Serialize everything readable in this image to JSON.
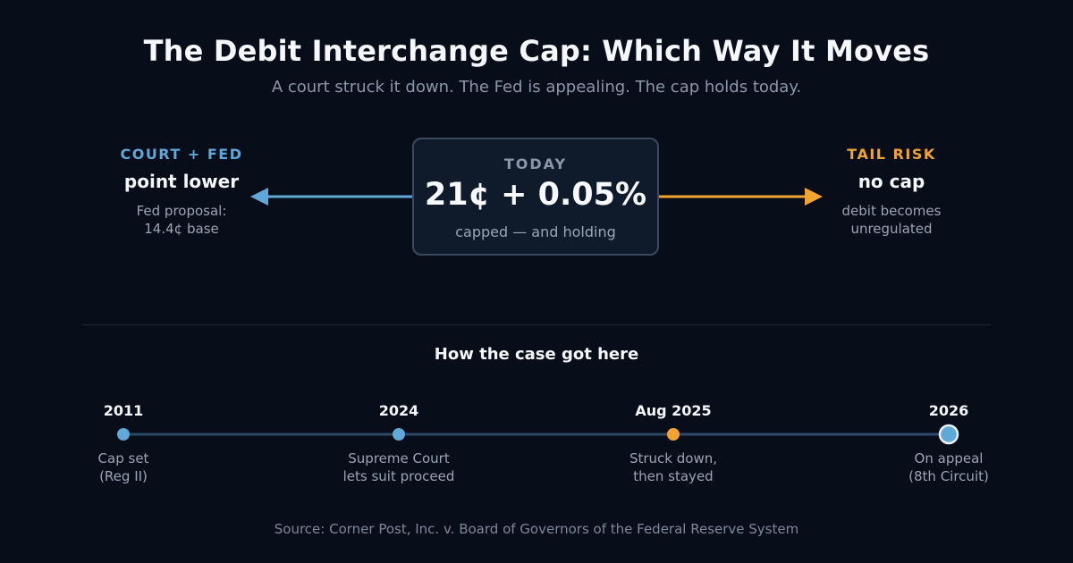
{
  "title": "The Debit Interchange Cap: Which Way It Moves",
  "subtitle": "A court struck it down. The Fed is appealing. The cap holds today.",
  "left": {
    "tag": "COURT + FED",
    "headline": "point lower",
    "note_line1": "Fed proposal:",
    "note_line2": "14.4¢ base",
    "color": "#5fa8d8"
  },
  "center": {
    "tag": "TODAY",
    "value": "21¢ + 0.05%",
    "note": "capped — and holding"
  },
  "right": {
    "tag": "TAIL RISK",
    "headline": "no cap",
    "note_line1": "debit becomes",
    "note_line2": "unregulated",
    "color": "#f2a431"
  },
  "timeline": {
    "title": "How the case got here",
    "events": [
      {
        "year": "2011",
        "label_line1": "Cap set",
        "label_line2": "(Reg II)",
        "color": "#5fa8d8"
      },
      {
        "year": "2024",
        "label_line1": "Supreme Court",
        "label_line2": "lets suit proceed",
        "color": "#5fa8d8"
      },
      {
        "year": "Aug 2025",
        "label_line1": "Struck down,",
        "label_line2": "then stayed",
        "color": "#f2a431"
      },
      {
        "year": "2026",
        "label_line1": "On appeal",
        "label_line2": "(8th Circuit)",
        "color": "#5fa8d8"
      }
    ]
  },
  "source": "Source: Corner Post, Inc. v. Board of Governors of the Federal Reserve System"
}
